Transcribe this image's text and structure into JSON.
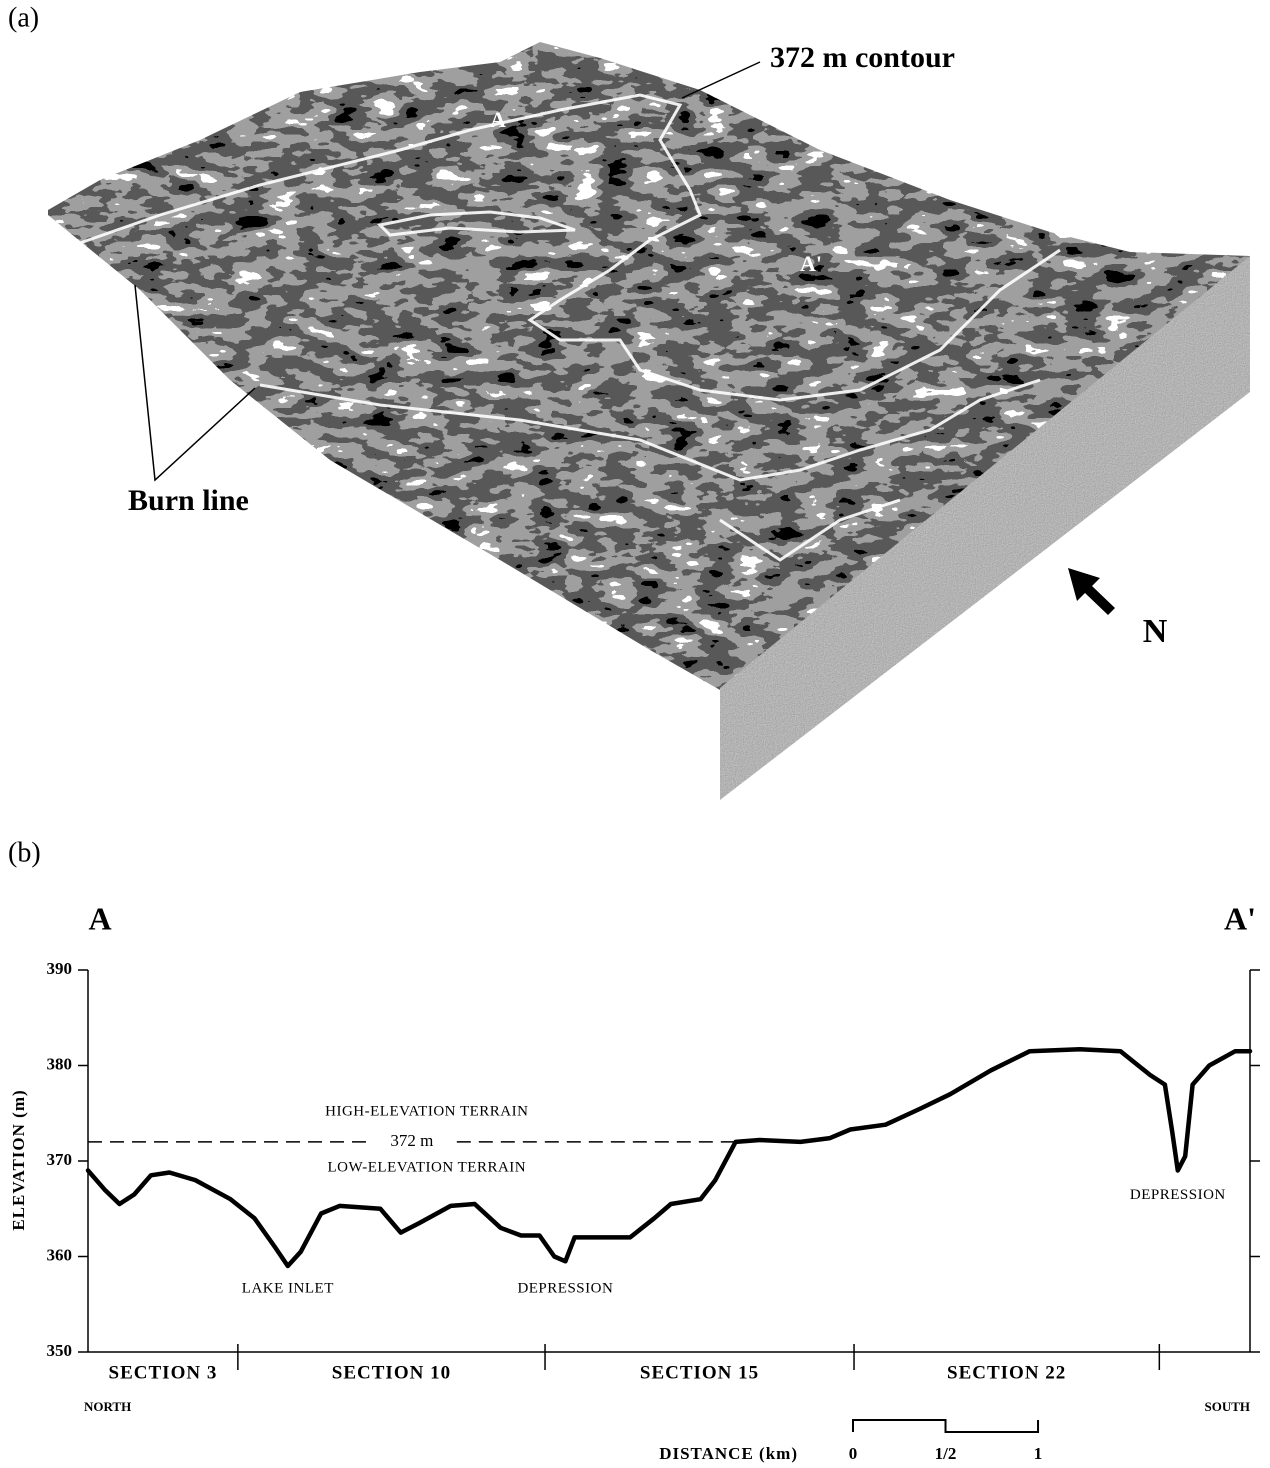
{
  "panel_a": {
    "label": "(a)",
    "contour_label": "372 m contour",
    "burn_label": "Burn line",
    "point_a": "A",
    "point_a_prime": "A'",
    "north": "N"
  },
  "panel_b_label": "(b)",
  "chart_data": {
    "type": "line",
    "y_label": "ELEVATION (m)",
    "end_labels": {
      "left": "A",
      "right": "A'"
    },
    "direction_labels": {
      "left": "NORTH",
      "right": "SOUTH"
    },
    "xlim": [
      0,
      6.28
    ],
    "ylim": [
      350,
      390
    ],
    "yticks": [
      350,
      360,
      370,
      380,
      390
    ],
    "color": "#000000",
    "x": [
      0,
      0.09,
      0.17,
      0.25,
      0.34,
      0.44,
      0.58,
      0.77,
      0.9,
      1.01,
      1.08,
      1.15,
      1.26,
      1.36,
      1.58,
      1.69,
      1.79,
      1.96,
      2.09,
      2.23,
      2.34,
      2.44,
      2.52,
      2.58,
      2.63,
      2.77,
      2.93,
      3.06,
      3.15,
      3.31,
      3.39,
      3.5,
      3.63,
      3.85,
      4.01,
      4.12,
      4.31,
      4.5,
      4.66,
      4.88,
      5.09,
      5.36,
      5.58,
      5.74,
      5.82,
      5.86,
      5.89,
      5.93,
      5.97,
      6.06,
      6.2,
      6.28
    ],
    "values": [
      369,
      367,
      365.5,
      366.5,
      368.5,
      368.8,
      368,
      366,
      364,
      361,
      359,
      360.5,
      364.5,
      365.3,
      365,
      362.5,
      363.5,
      365.3,
      365.5,
      363,
      362.2,
      362.2,
      360,
      359.5,
      362,
      362,
      362,
      364,
      365.5,
      366,
      368,
      372,
      372.2,
      372,
      372.4,
      373.3,
      373.8,
      375.5,
      377,
      379.5,
      381.5,
      381.7,
      381.5,
      379,
      378,
      373,
      369,
      370.5,
      378,
      380,
      381.5,
      381.5
    ],
    "sections": [
      {
        "label": "SECTION 3",
        "start": 0,
        "end": 0.81
      },
      {
        "label": "SECTION 10",
        "start": 0.81,
        "end": 2.47
      },
      {
        "label": "SECTION 15",
        "start": 2.47,
        "end": 4.14
      },
      {
        "label": "SECTION 22",
        "start": 4.14,
        "end": 5.79
      }
    ],
    "reference_line": {
      "value": 372,
      "x_end": 3.5,
      "label": "372 m",
      "above": "HIGH-ELEVATION TERRAIN",
      "below": "LOW-ELEVATION TERRAIN"
    },
    "annotations": [
      {
        "text": "LAKE INLET",
        "x": 1.08,
        "y": 356.6
      },
      {
        "text": "DEPRESSION",
        "x": 2.58,
        "y": 356.6
      },
      {
        "text": "DEPRESSION",
        "x": 5.89,
        "y": 366.4
      }
    ],
    "scale_bar": {
      "label": "DISTANCE (km)",
      "ticks": [
        {
          "value": 0,
          "label": "0"
        },
        {
          "value": 0.5,
          "label": "1/2"
        },
        {
          "value": 1,
          "label": "1"
        }
      ]
    }
  }
}
